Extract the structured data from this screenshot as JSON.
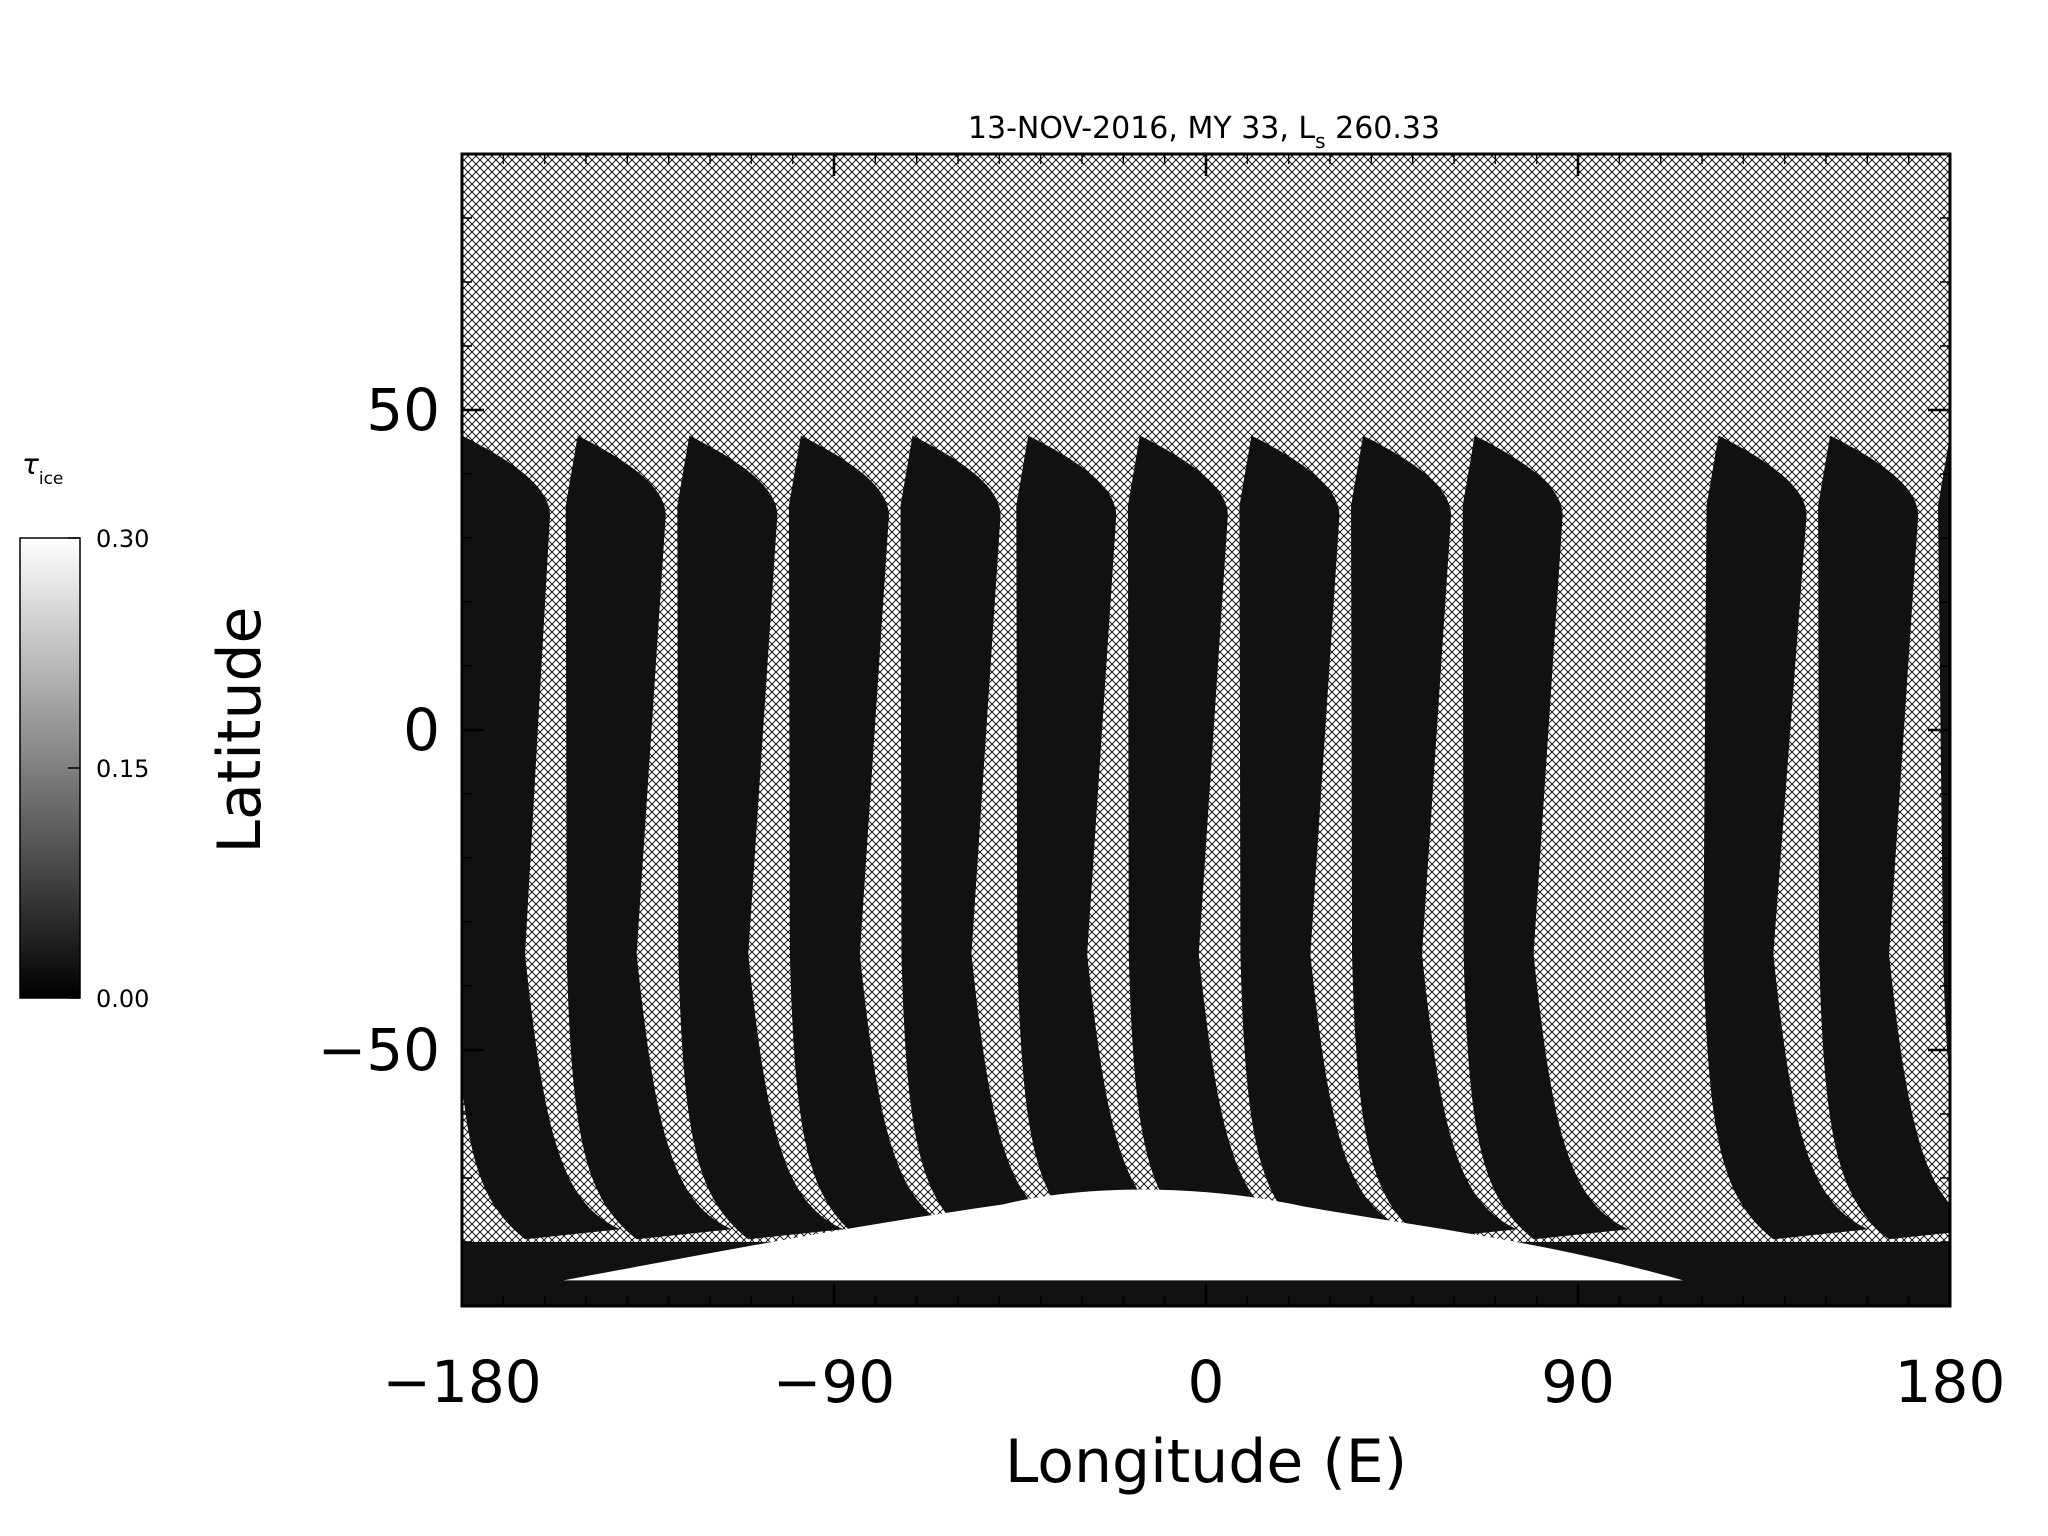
{
  "chart_data": {
    "type": "heatmap",
    "title": "13-NOV-2016, MY 33,  L",
    "title_sub": "s",
    "title_tail": " 260.33",
    "xlabel": "Longitude (E)",
    "ylabel": "Latitude",
    "xlim": [
      -180,
      180
    ],
    "ylim": [
      -90,
      90
    ],
    "xticks": [
      {
        "value": -180,
        "label": "−180"
      },
      {
        "value": -90,
        "label": "−90"
      },
      {
        "value": 0,
        "label": "0"
      },
      {
        "value": 90,
        "label": "90"
      },
      {
        "value": 180,
        "label": "180"
      }
    ],
    "yticks": [
      {
        "value": 50,
        "label": "50"
      },
      {
        "value": 0,
        "label": "0"
      },
      {
        "value": -50,
        "label": "−50"
      }
    ],
    "x_minor_step": 10,
    "y_minor_step": 10,
    "no_data_fill": "crosshatch",
    "colorbar": {
      "label": "τ",
      "label_sub": "ice",
      "min": 0.0,
      "max": 0.3,
      "ticks": [
        {
          "value": 0.0,
          "label": "0.00"
        },
        {
          "value": 0.15,
          "label": "0.15"
        },
        {
          "value": 0.3,
          "label": "0.30"
        }
      ],
      "colors": {
        "low": "#000000",
        "high": "#ffffff"
      }
    },
    "swaths": [
      {
        "lon_top": -180,
        "lon_bottom": -172
      },
      {
        "lon_top": -152,
        "lon_bottom": -145
      },
      {
        "lon_top": -125,
        "lon_bottom": -118
      },
      {
        "lon_top": -98,
        "lon_bottom": -91
      },
      {
        "lon_top": -71,
        "lon_bottom": -64
      },
      {
        "lon_top": -43,
        "lon_bottom": -36
      },
      {
        "lon_top": -16,
        "lon_bottom": -9
      },
      {
        "lon_top": 11,
        "lon_bottom": 18
      },
      {
        "lon_top": 38,
        "lon_bottom": 45
      },
      {
        "lon_top": 65,
        "lon_bottom": 72
      },
      {
        "lon_top": 124,
        "lon_bottom": 130
      },
      {
        "lon_top": 151,
        "lon_bottom": 158
      }
    ],
    "swath_lat_top": 46,
    "swath_lat_bottom": -78,
    "swath_value": 0.02,
    "polar_cap": {
      "lat_edge": -86,
      "lat_peak": -71,
      "lon_center": -20,
      "value": 0.3
    }
  }
}
